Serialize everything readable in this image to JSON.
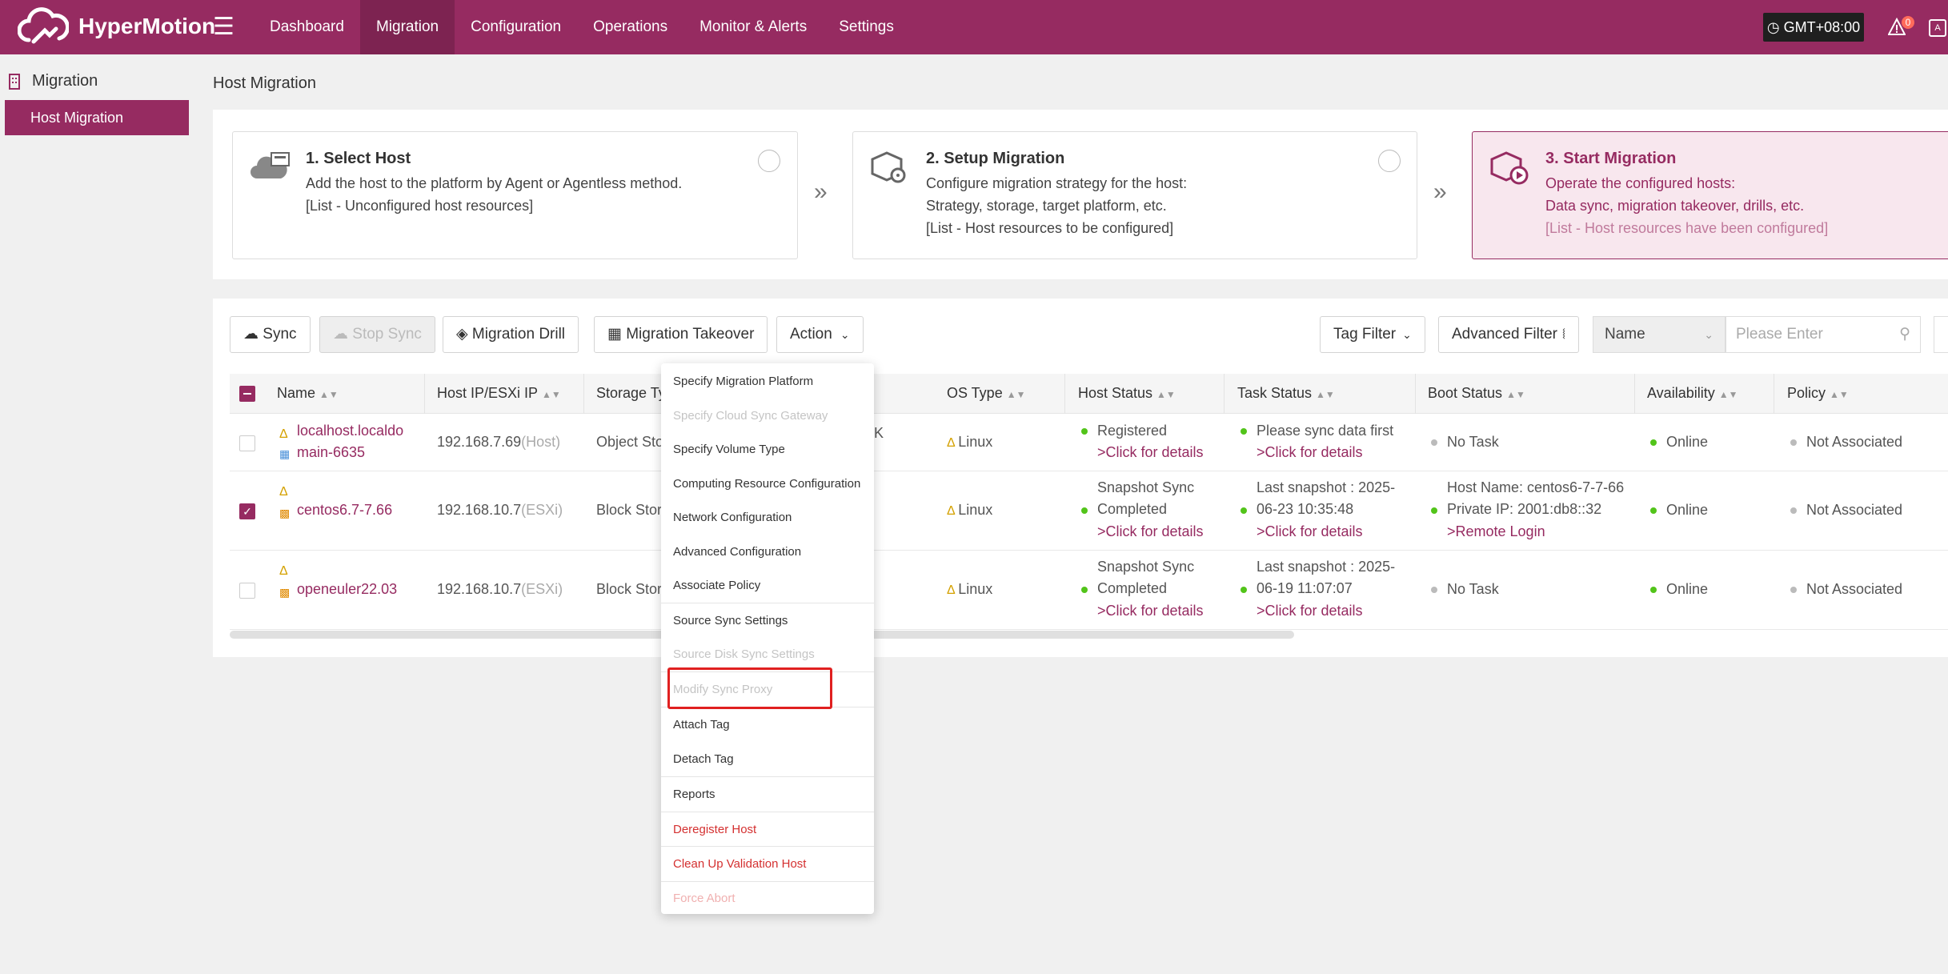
{
  "app": {
    "name": "HyperMotion"
  },
  "nav": {
    "items": [
      "Dashboard",
      "Migration",
      "Configuration",
      "Operations",
      "Monitor & Alerts",
      "Settings"
    ],
    "active": "Migration"
  },
  "header": {
    "timezone": "GMT+08:00",
    "alert_count": "0",
    "lang_label": "A"
  },
  "sidebar": {
    "section": "Migration",
    "items": [
      {
        "label": "Host Migration",
        "active": true
      }
    ]
  },
  "page": {
    "title": "Host Migration"
  },
  "steps": [
    {
      "title": "1. Select Host",
      "lines": [
        "Add the host to the platform by Agent or Agentless method.",
        "[List - Unconfigured host resources]"
      ]
    },
    {
      "title": "2. Setup Migration",
      "lines": [
        "Configure migration strategy for the host:",
        "Strategy, storage, target platform, etc.",
        "[List - Host resources to be configured]"
      ]
    },
    {
      "title": "3. Start Migration",
      "lines": [
        "Operate the configured hosts:",
        "Data sync, migration takeover, drills, etc.",
        "[List - Host resources have been configured]"
      ],
      "active": true
    }
  ],
  "toolbar": {
    "sync": "Sync",
    "stop_sync": "Stop Sync",
    "migration_drill": "Migration Drill",
    "migration_takeover": "Migration Takeover",
    "action": "Action",
    "tag_filter": "Tag Filter",
    "advanced_filter": "Advanced Filter",
    "search_field": "Name",
    "search_placeholder": "Please Enter"
  },
  "table": {
    "columns": [
      "Name",
      "Host IP/ESXi IP",
      "Storage Ty",
      "OS Type",
      "Host Status",
      "Task Status",
      "Boot Status",
      "Availability",
      "Policy"
    ],
    "rows": [
      {
        "name_line1": "localhost.localdo",
        "name_line2": "main-6635",
        "ip": "192.168.7.69",
        "ip_type": "(Host)",
        "storage": "Object Sto",
        "storage_tail": "K",
        "os": "Linux",
        "host_status": [
          "Registered"
        ],
        "host_status_link": ">Click for details",
        "task_status": [
          "Please sync data first"
        ],
        "task_status_link": ">Click for details",
        "boot_status": [
          "No Task"
        ],
        "availability": "Online",
        "policy": "Not Associated",
        "checked": false
      },
      {
        "name_line1": "centos6.7-7.66",
        "ip": "192.168.10.7",
        "ip_type": "(ESXi)",
        "storage": "Block Stora",
        "os": "Linux",
        "host_status": [
          "Snapshot Sync",
          "Completed"
        ],
        "host_status_link": ">Click for details",
        "task_status": [
          "Last snapshot : 2025-",
          "06-23 10:35:48"
        ],
        "task_status_link": ">Click for details",
        "boot_status": [
          "Host Name: centos6-7-7-66",
          "Private IP: 2001:db8::32"
        ],
        "boot_status_link": ">Remote Login",
        "availability": "Online",
        "policy": "Not Associated",
        "checked": true
      },
      {
        "name_line1": "openeuler22.03",
        "ip": "192.168.10.7",
        "ip_type": "(ESXi)",
        "storage": "Block Stora",
        "os": "Linux",
        "host_status": [
          "Snapshot Sync",
          "Completed"
        ],
        "host_status_link": ">Click for details",
        "task_status": [
          "Last snapshot : 2025-",
          "06-19 11:07:07"
        ],
        "task_status_link": ">Click for details",
        "boot_status": [
          "No Task"
        ],
        "availability": "Online",
        "policy": "Not Associated",
        "checked": false
      }
    ]
  },
  "action_menu": {
    "items": [
      {
        "label": "Specify Migration Platform",
        "state": "enabled"
      },
      {
        "label": "Specify Cloud Sync Gateway",
        "state": "disabled"
      },
      {
        "label": "Specify Volume Type",
        "state": "enabled"
      },
      {
        "label": "Computing Resource Configuration",
        "state": "enabled"
      },
      {
        "label": "Network Configuration",
        "state": "enabled"
      },
      {
        "label": "Advanced Configuration",
        "state": "enabled"
      },
      {
        "label": "Associate Policy",
        "state": "enabled"
      },
      {
        "label": "Source Sync Settings",
        "state": "enabled"
      },
      {
        "label": "Source Disk Sync Settings",
        "state": "disabled"
      },
      {
        "label": "Modify Sync Proxy",
        "state": "disabled",
        "highlighted": true
      },
      {
        "label": "Attach Tag",
        "state": "enabled"
      },
      {
        "label": "Detach Tag",
        "state": "enabled"
      },
      {
        "label": "Reports",
        "state": "enabled"
      },
      {
        "label": "Deregister Host",
        "state": "danger"
      },
      {
        "label": "Clean Up Validation Host",
        "state": "danger"
      },
      {
        "label": "Force Abort",
        "state": "danger-disabled"
      }
    ]
  },
  "colors": {
    "brand": "#962b61",
    "online": "#52c41a",
    "danger": "#d43030",
    "highlight": "#e02020"
  }
}
